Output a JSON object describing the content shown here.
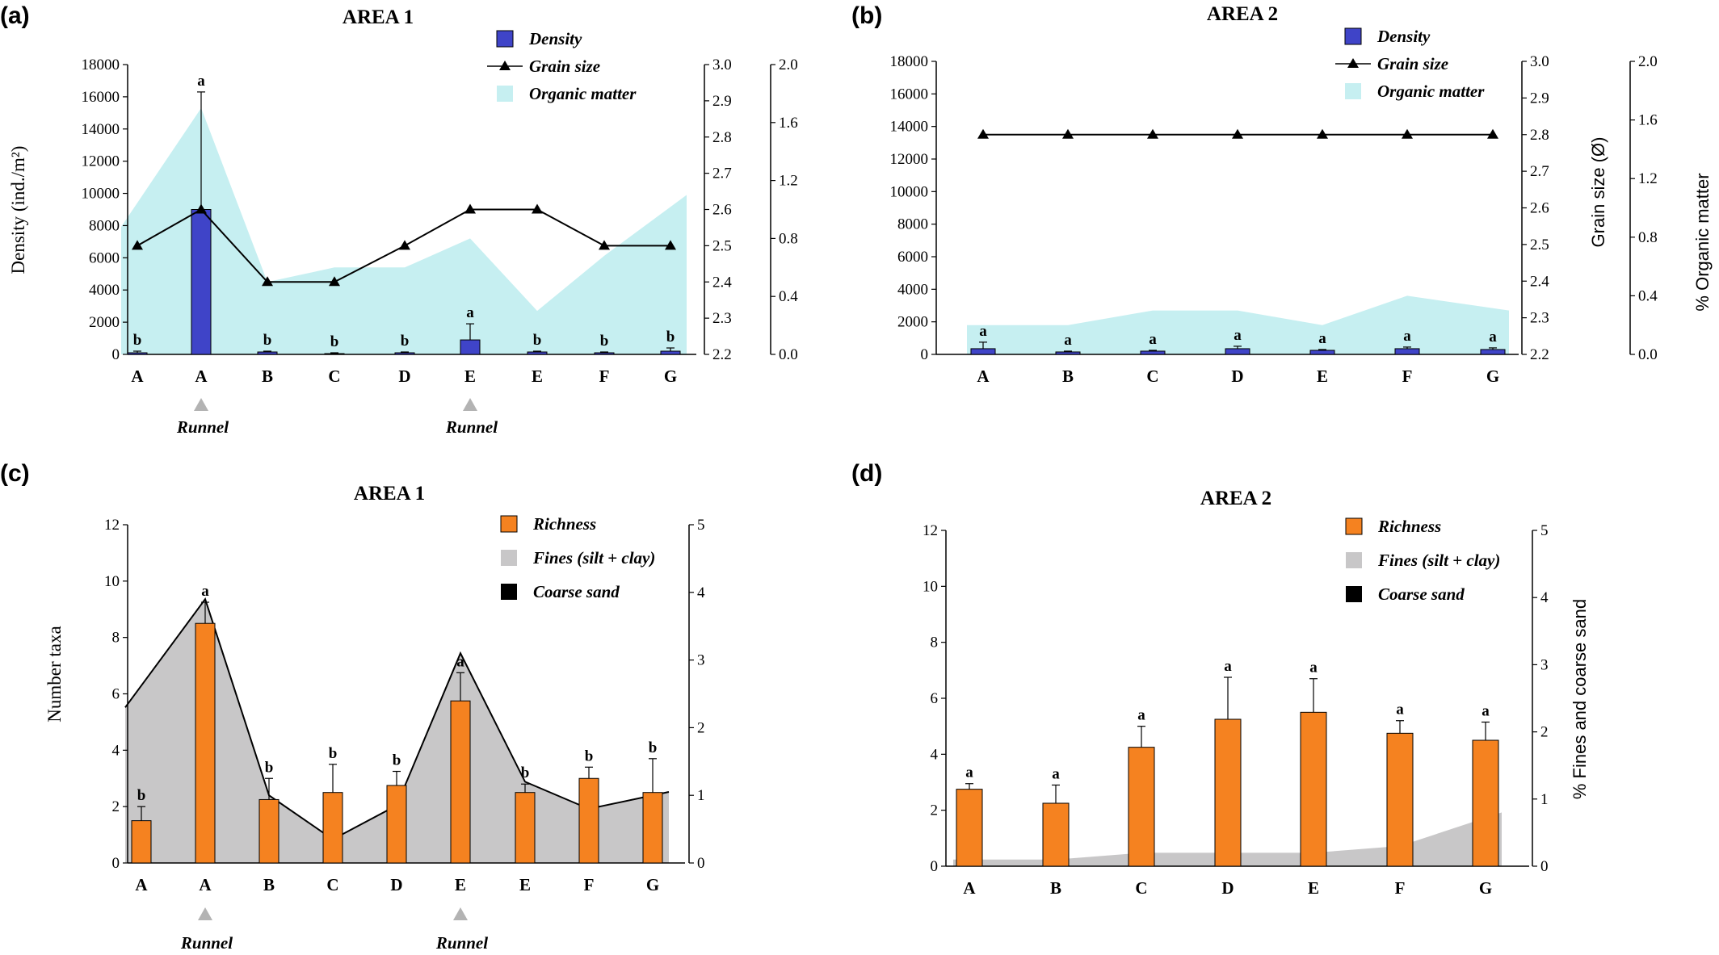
{
  "figure": {
    "panels": [
      {
        "letter": "(a)",
        "title": "AREA 1"
      },
      {
        "letter": "(b)",
        "title": "AREA 2"
      },
      {
        "letter": "(c)",
        "title": "AREA 1"
      },
      {
        "letter": "(d)",
        "title": "AREA 2"
      }
    ],
    "runnel_label": "Runnel"
  },
  "chart_data": [
    {
      "panel": "(a)",
      "type": "bar",
      "title": "AREA 1",
      "categories": [
        "A",
        "A",
        "B",
        "C",
        "D",
        "E",
        "E",
        "F",
        "G"
      ],
      "markers": [
        {
          "category_index": 1,
          "label": "Runnel"
        },
        {
          "category_index": 5,
          "label": "Runnel"
        }
      ],
      "ylabel": "Density (ind./m²)",
      "ylim": [
        0,
        18000
      ],
      "yticks": [
        "0",
        "2000",
        "4000",
        "6000",
        "8000",
        "10000",
        "12000",
        "14000",
        "16000",
        "18000"
      ],
      "grainsize_axis": {
        "label": "",
        "ylim": [
          2.2,
          3.0
        ],
        "ticks": [
          "2.2",
          "2.3",
          "2.4",
          "2.5",
          "2.6",
          "2.7",
          "2.8",
          "2.9",
          "3.0"
        ]
      },
      "organic_axis": {
        "label": "",
        "ylim": [
          0,
          2.0
        ],
        "ticks": [
          "0.0",
          "0.4",
          "0.8",
          "1.2",
          "1.6",
          "2.0"
        ]
      },
      "series": [
        {
          "name": "Density",
          "kind": "bar",
          "axis": "left",
          "color": "#3f44c8",
          "values": [
            100,
            9000,
            150,
            50,
            100,
            900,
            150,
            100,
            200
          ],
          "errors": [
            100,
            7300,
            50,
            50,
            50,
            1000,
            50,
            50,
            200
          ],
          "labels": [
            "b",
            "a",
            "b",
            "b",
            "b",
            "a",
            "b",
            "b",
            "b"
          ]
        },
        {
          "name": "Grain size",
          "kind": "line",
          "axis": "grainsize",
          "color": "#000000",
          "values": [
            2.5,
            2.6,
            2.4,
            2.4,
            2.5,
            2.6,
            2.6,
            2.5,
            2.5
          ]
        },
        {
          "name": "Organic matter",
          "kind": "area",
          "axis": "organic",
          "color": "#c6eff1",
          "values": [
            0.88,
            1.7,
            0.5,
            0.6,
            0.6,
            0.8,
            0.3,
            0.68,
            1.1
          ]
        }
      ],
      "legend": "top-right"
    },
    {
      "panel": "(b)",
      "type": "bar",
      "title": "AREA 2",
      "categories": [
        "A",
        "B",
        "C",
        "D",
        "E",
        "F",
        "G"
      ],
      "ylabel": "",
      "ylim": [
        0,
        18000
      ],
      "yticks": [
        "0",
        "2000",
        "4000",
        "6000",
        "8000",
        "10000",
        "12000",
        "14000",
        "16000",
        "18000"
      ],
      "grainsize_axis": {
        "label": "Grain size (Ø)",
        "ylim": [
          2.2,
          3.0
        ],
        "ticks": [
          "2.2",
          "2.3",
          "2.4",
          "2.5",
          "2.6",
          "2.7",
          "2.8",
          "2.9",
          "3.0"
        ]
      },
      "organic_axis": {
        "label": "% Organic matter",
        "ylim": [
          0,
          2.0
        ],
        "ticks": [
          "0.0",
          "0.4",
          "0.8",
          "1.2",
          "1.6",
          "2.0"
        ]
      },
      "series": [
        {
          "name": "Density",
          "kind": "bar",
          "axis": "left",
          "color": "#3f44c8",
          "values": [
            350,
            150,
            200,
            350,
            250,
            350,
            300
          ],
          "errors": [
            400,
            50,
            50,
            150,
            50,
            100,
            100
          ],
          "labels": [
            "a",
            "a",
            "a",
            "a",
            "a",
            "a",
            "a"
          ]
        },
        {
          "name": "Grain size",
          "kind": "line",
          "axis": "grainsize",
          "color": "#000000",
          "values": [
            2.8,
            2.8,
            2.8,
            2.8,
            2.8,
            2.8,
            2.8
          ]
        },
        {
          "name": "Organic matter",
          "kind": "area",
          "axis": "organic",
          "color": "#c6eff1",
          "values": [
            0.2,
            0.2,
            0.3,
            0.3,
            0.2,
            0.4,
            0.3
          ]
        }
      ],
      "legend": "top-right"
    },
    {
      "panel": "(c)",
      "type": "bar",
      "title": "AREA 1",
      "categories": [
        "A",
        "A",
        "B",
        "C",
        "D",
        "E",
        "E",
        "F",
        "G"
      ],
      "markers": [
        {
          "category_index": 1,
          "label": "Runnel"
        },
        {
          "category_index": 5,
          "label": "Runnel"
        }
      ],
      "ylabel": "Number taxa",
      "ylim": [
        0,
        12
      ],
      "yticks": [
        "0",
        "2",
        "4",
        "6",
        "8",
        "10",
        "12"
      ],
      "right_axis": {
        "label": "",
        "ylim": [
          0,
          5
        ],
        "ticks": [
          "0",
          "1",
          "2",
          "3",
          "4",
          "5"
        ]
      },
      "series": [
        {
          "name": "Richness",
          "kind": "bar",
          "axis": "left",
          "color": "#f58220",
          "values": [
            1.5,
            8.5,
            2.25,
            2.5,
            2.75,
            5.75,
            2.5,
            3.0,
            2.5
          ],
          "errors": [
            0.5,
            0.75,
            0.75,
            1.0,
            0.5,
            1.0,
            0.3,
            0.4,
            1.2
          ],
          "labels": [
            "b",
            "a",
            "b",
            "b",
            "b",
            "a",
            "b",
            "b",
            "b"
          ]
        },
        {
          "name": "Fines (silt + clay)",
          "kind": "area",
          "axis": "right",
          "color": "#c8c7c8",
          "values": [
            2.3,
            3.9,
            1.0,
            0.35,
            0.85,
            3.1,
            1.2,
            0.8,
            1.05
          ]
        },
        {
          "name": "Coarse sand",
          "kind": "area",
          "axis": "right",
          "color": "#000000",
          "values": [
            2.3,
            3.9,
            1.0,
            0.35,
            0.85,
            3.1,
            1.2,
            0.8,
            1.05
          ]
        }
      ],
      "legend": "top-right"
    },
    {
      "panel": "(d)",
      "type": "bar",
      "title": "AREA 2",
      "categories": [
        "A",
        "B",
        "C",
        "D",
        "E",
        "F",
        "G"
      ],
      "ylabel": "",
      "ylim": [
        0,
        12
      ],
      "yticks": [
        "0",
        "2",
        "4",
        "6",
        "8",
        "10",
        "12"
      ],
      "right_axis": {
        "label": "% Fines and coarse sand",
        "ylim": [
          0,
          5
        ],
        "ticks": [
          "0",
          "1",
          "2",
          "3",
          "4",
          "5"
        ]
      },
      "series": [
        {
          "name": "Richness",
          "kind": "bar",
          "axis": "left",
          "color": "#f58220",
          "values": [
            2.75,
            2.25,
            4.25,
            5.25,
            5.5,
            4.75,
            4.5
          ],
          "errors": [
            0.2,
            0.65,
            0.75,
            1.5,
            1.2,
            0.45,
            0.65
          ],
          "labels": [
            "a",
            "a",
            "a",
            "a",
            "a",
            "a",
            "a"
          ]
        },
        {
          "name": "Fines (silt + clay)",
          "kind": "area",
          "axis": "right",
          "color": "#c8c7c8",
          "values": [
            0.1,
            0.1,
            0.2,
            0.2,
            0.2,
            0.3,
            0.8
          ]
        },
        {
          "name": "Coarse sand",
          "kind": "area",
          "axis": "right",
          "color": "#000000",
          "values": [
            0,
            0,
            0,
            0,
            0,
            0,
            0
          ]
        }
      ],
      "legend": "top-right"
    }
  ]
}
